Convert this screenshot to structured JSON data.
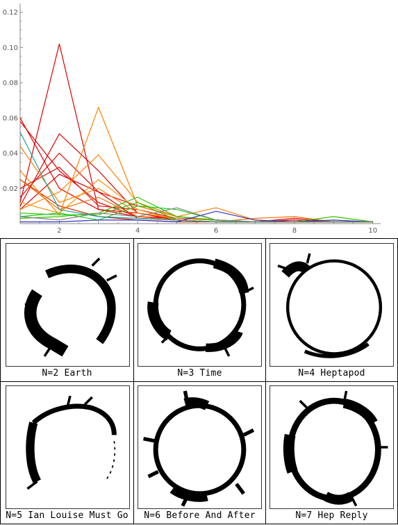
{
  "chart_data": {
    "type": "line",
    "title": "",
    "xlabel": "",
    "ylabel": "",
    "xlim": [
      1,
      10.2
    ],
    "ylim": [
      0,
      0.125
    ],
    "x_ticks": [
      2,
      4,
      6,
      8,
      10
    ],
    "y_ticks": [
      0.02,
      0.04,
      0.06,
      0.08,
      0.1,
      0.12
    ],
    "x_tick_labels": [
      "2",
      "4",
      "6",
      "8",
      "10"
    ],
    "y_tick_labels": [
      "0.02",
      "0.04",
      "0.06",
      "0.08",
      "0.10",
      "0.12"
    ],
    "x": [
      1,
      2,
      3,
      4,
      5,
      6,
      7,
      8,
      9,
      10
    ],
    "series": [
      {
        "color": "#e00000",
        "values": [
          0.012,
          0.102,
          0.008,
          0.004,
          0.003,
          0.002,
          0.001,
          0.001,
          0.001,
          0.001
        ]
      },
      {
        "color": "#e00000",
        "values": [
          0.06,
          0.02,
          0.008,
          0.006,
          0.003,
          0.002,
          0.001,
          0.001,
          0.001,
          0.001
        ]
      },
      {
        "color": "#e00000",
        "values": [
          0.01,
          0.051,
          0.03,
          0.006,
          0.002,
          0.001,
          0.001,
          0.001,
          0.001,
          0.001
        ]
      },
      {
        "color": "#e00000",
        "values": [
          0.015,
          0.04,
          0.018,
          0.01,
          0.004,
          0.002,
          0.001,
          0.003,
          0.001,
          0.001
        ]
      },
      {
        "color": "#e00000",
        "values": [
          0.058,
          0.03,
          0.012,
          0.004,
          0.002,
          0.001,
          0.001,
          0.001,
          0.001,
          0.001
        ]
      },
      {
        "color": "#e01010",
        "values": [
          0.02,
          0.032,
          0.01,
          0.008,
          0.003,
          0.002,
          0.001,
          0.001,
          0.001,
          0.001
        ]
      },
      {
        "color": "#d80000",
        "values": [
          0.008,
          0.028,
          0.018,
          0.003,
          0.002,
          0.001,
          0.001,
          0.002,
          0.001,
          0.001
        ]
      },
      {
        "color": "#e02000",
        "values": [
          0.025,
          0.01,
          0.004,
          0.002,
          0.001,
          0.001,
          0.001,
          0.001,
          0.001,
          0.001
        ]
      },
      {
        "color": "#ff8000",
        "values": [
          0.03,
          0.005,
          0.066,
          0.01,
          0.004,
          0.002,
          0.001,
          0.001,
          0.001,
          0.001
        ]
      },
      {
        "color": "#ff8000",
        "values": [
          0.008,
          0.018,
          0.039,
          0.012,
          0.004,
          0.009,
          0.002,
          0.001,
          0.001,
          0.001
        ]
      },
      {
        "color": "#ff8000",
        "values": [
          0.044,
          0.012,
          0.02,
          0.006,
          0.003,
          0.002,
          0.001,
          0.001,
          0.001,
          0.001
        ]
      },
      {
        "color": "#f07000",
        "values": [
          0.025,
          0.008,
          0.015,
          0.004,
          0.002,
          0.001,
          0.003,
          0.004,
          0.001,
          0.001
        ]
      },
      {
        "color": "#ff9000",
        "values": [
          0.012,
          0.006,
          0.025,
          0.008,
          0.002,
          0.001,
          0.001,
          0.001,
          0.001,
          0.001
        ]
      },
      {
        "color": "#30c000",
        "values": [
          0.003,
          0.004,
          0.006,
          0.015,
          0.004,
          0.002,
          0.001,
          0.001,
          0.001,
          0.001
        ]
      },
      {
        "color": "#30c000",
        "values": [
          0.006,
          0.005,
          0.005,
          0.012,
          0.002,
          0.001,
          0.001,
          0.001,
          0.004,
          0.001
        ]
      },
      {
        "color": "#10d010",
        "values": [
          0.004,
          0.006,
          0.002,
          0.01,
          0.008,
          0.002,
          0.001,
          0.001,
          0.001,
          0.001
        ]
      },
      {
        "color": "#20a0a0",
        "values": [
          0.052,
          0.008,
          0.004,
          0.003,
          0.002,
          0.001,
          0.001,
          0.001,
          0.001,
          0.001
        ]
      },
      {
        "color": "#3030c0",
        "values": [
          0.001,
          0.001,
          0.002,
          0.002,
          0.001,
          0.007,
          0.002,
          0.001,
          0.002,
          0.001
        ]
      },
      {
        "color": "#808080",
        "values": [
          0.004,
          0.002,
          0.006,
          0.004,
          0.009,
          0.002,
          0.001,
          0.001,
          0.001,
          0.001
        ]
      }
    ]
  },
  "panels": [
    {
      "caption": "N=2 Earth"
    },
    {
      "caption": "N=3 Time"
    },
    {
      "caption": "N=4 Heptapod"
    },
    {
      "caption": "N=5 Ian Louise Must Go"
    },
    {
      "caption": "N=6 Before And After"
    },
    {
      "caption": "N=7 Hep Reply"
    }
  ]
}
